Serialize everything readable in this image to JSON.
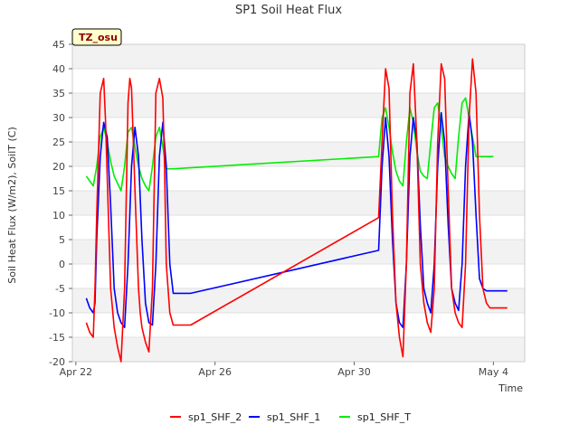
{
  "chart_data": {
    "type": "line",
    "title": "SP1 Soil Heat Flux",
    "xlabel": "Time",
    "ylabel": "Soil Heat Flux (W/m2), SoilT (C)",
    "site_label": "TZ_osu",
    "x_unit": "days since Apr 22",
    "xlim": [
      -0.1,
      12.9
    ],
    "ylim": [
      -20,
      45
    ],
    "x_ticks": [
      {
        "x": 0,
        "label": "Apr 22"
      },
      {
        "x": 4,
        "label": "Apr 26"
      },
      {
        "x": 8,
        "label": "Apr 30"
      },
      {
        "x": 12,
        "label": "May 4"
      }
    ],
    "y_ticks": [
      -20,
      -15,
      -10,
      -5,
      0,
      5,
      10,
      15,
      20,
      25,
      30,
      35,
      40,
      45
    ],
    "y_tick_labels": [
      "-20",
      "-15",
      "-10",
      "-5",
      "0",
      "5",
      "10",
      "15",
      "20",
      "25",
      "30",
      "35",
      "40",
      "45"
    ],
    "series": [
      {
        "name": "sp1_SHF_2",
        "color": "#ff0000",
        "x": [
          0.3,
          0.4,
          0.5,
          0.55,
          0.6,
          0.7,
          0.8,
          0.85,
          0.9,
          1.0,
          1.1,
          1.2,
          1.3,
          1.4,
          1.5,
          1.55,
          1.6,
          1.7,
          1.8,
          1.85,
          1.9,
          2.0,
          2.1,
          2.2,
          2.3,
          2.4,
          2.5,
          2.55,
          2.6,
          2.7,
          2.8,
          2.85,
          2.9,
          3.0,
          3.1,
          3.3,
          8.7,
          8.8,
          8.9,
          9.0,
          9.1,
          9.2,
          9.3,
          9.4,
          9.5,
          9.6,
          9.7,
          9.8,
          9.9,
          10.0,
          10.1,
          10.2,
          10.3,
          10.4,
          10.5,
          10.6,
          10.7,
          10.8,
          10.9,
          11.0,
          11.1,
          11.2,
          11.3,
          11.4,
          11.5,
          11.6,
          11.7,
          11.8,
          11.9,
          12.0,
          12.1,
          12.2,
          12.3,
          12.4
        ],
        "values": [
          -12,
          -14,
          -15,
          -5,
          10,
          35,
          38,
          30,
          18,
          -5,
          -13,
          -17,
          -20,
          -5,
          33,
          38,
          36,
          15,
          -5,
          -10,
          -13,
          -16,
          -18,
          -5,
          35,
          38,
          34,
          20,
          0,
          -10,
          -12.5,
          -12.5,
          -12.5,
          -12.5,
          -12.5,
          -12.5,
          9.5,
          25,
          40,
          36,
          10,
          -8,
          -15,
          -19,
          0,
          35,
          41,
          25,
          0,
          -8,
          -12,
          -14,
          -5,
          25,
          41,
          38,
          15,
          -5,
          -10,
          -12,
          -13,
          0,
          30,
          42,
          35,
          10,
          -5,
          -8,
          -9,
          -9,
          -9,
          -9,
          -9,
          -9
        ]
      },
      {
        "name": "sp1_SHF_1",
        "color": "#0000ff",
        "x": [
          0.3,
          0.4,
          0.5,
          0.55,
          0.6,
          0.7,
          0.8,
          0.9,
          1.0,
          1.1,
          1.2,
          1.3,
          1.4,
          1.5,
          1.6,
          1.7,
          1.8,
          1.9,
          2.0,
          2.1,
          2.2,
          2.3,
          2.4,
          2.5,
          2.6,
          2.7,
          2.8,
          2.9,
          3.0,
          3.1,
          3.3,
          8.7,
          8.8,
          8.9,
          9.0,
          9.1,
          9.2,
          9.3,
          9.4,
          9.5,
          9.6,
          9.7,
          9.8,
          9.9,
          10.0,
          10.1,
          10.2,
          10.3,
          10.4,
          10.5,
          10.6,
          10.7,
          10.8,
          10.9,
          11.0,
          11.1,
          11.2,
          11.3,
          11.4,
          11.5,
          11.6,
          11.7,
          11.8,
          11.9,
          12.0,
          12.1,
          12.2,
          12.3,
          12.4
        ],
        "values": [
          -7,
          -9,
          -10,
          -8,
          5,
          22,
          29,
          26,
          12,
          -5,
          -10,
          -12,
          -13,
          0,
          20,
          28,
          22,
          5,
          -8,
          -12,
          -12.5,
          0,
          22,
          29,
          20,
          0,
          -6,
          -6,
          -6,
          -6,
          -6,
          2.8,
          20,
          30,
          22,
          5,
          -8,
          -12,
          -13,
          0,
          22,
          30,
          25,
          8,
          -5,
          -8,
          -10,
          0,
          20,
          31,
          25,
          8,
          -5,
          -8,
          -9.5,
          0,
          20,
          31,
          25,
          10,
          -3,
          -5,
          -5.5,
          -5.5,
          -5.5,
          -5.5,
          -5.5,
          -5.5,
          -5.5
        ]
      },
      {
        "name": "sp1_SHF_T",
        "color": "#00ee00",
        "x": [
          0.3,
          0.4,
          0.5,
          0.6,
          0.7,
          0.8,
          0.9,
          1.0,
          1.1,
          1.2,
          1.3,
          1.4,
          1.5,
          1.6,
          1.7,
          1.8,
          1.9,
          2.0,
          2.1,
          2.2,
          2.3,
          2.4,
          2.5,
          2.6,
          2.7,
          2.8,
          8.7,
          8.8,
          8.9,
          9.0,
          9.1,
          9.2,
          9.3,
          9.4,
          9.5,
          9.6,
          9.7,
          9.8,
          9.9,
          10.0,
          10.1,
          10.2,
          10.3,
          10.4,
          10.5,
          10.6,
          10.7,
          10.8,
          10.9,
          11.0,
          11.1,
          11.2,
          11.3,
          11.4,
          11.5,
          11.6,
          11.7,
          11.8,
          11.9,
          12.0
        ],
        "values": [
          18,
          17,
          16,
          20,
          26,
          28,
          25,
          21,
          18,
          16.5,
          15,
          20,
          27,
          28,
          24,
          20,
          17.5,
          16,
          15,
          20,
          26,
          28,
          24,
          19.5,
          19.5,
          19.5,
          22,
          30,
          32,
          28,
          23,
          19,
          17,
          16,
          25,
          32,
          29,
          23,
          19,
          18,
          17.5,
          25,
          32,
          33,
          28,
          22,
          20,
          18.5,
          17.5,
          26,
          33,
          34,
          30,
          26,
          22,
          22,
          22,
          22,
          22,
          22
        ]
      }
    ]
  }
}
